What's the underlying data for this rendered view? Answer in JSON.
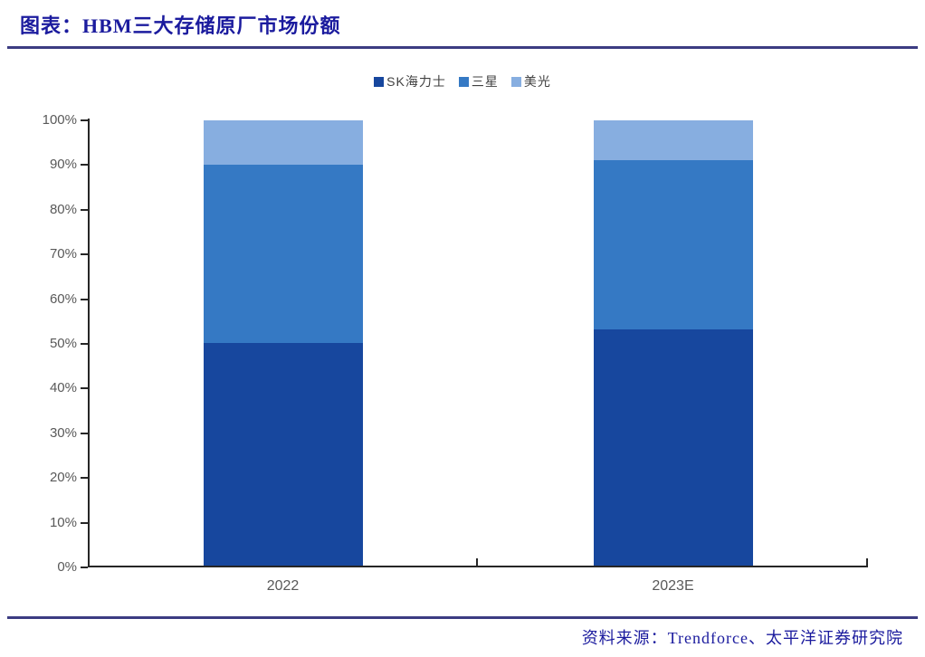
{
  "header": {
    "title": "图表：HBM三大存储原厂市场份额",
    "accent_color": "#1b1b9e",
    "divider_color": "#3c3c82"
  },
  "footer": {
    "source_text": "资料来源：Trendforce、太平洋证券研究院"
  },
  "chart_data": {
    "type": "bar",
    "stacked": true,
    "percent_stacked": true,
    "categories": [
      "2022",
      "2023E"
    ],
    "series": [
      {
        "name": "SK海力士",
        "color": "#17479e",
        "values": [
          50,
          53
        ]
      },
      {
        "name": "三星",
        "color": "#3579c4",
        "values": [
          40,
          38
        ]
      },
      {
        "name": "美光",
        "color": "#87aee0",
        "values": [
          10,
          9
        ]
      }
    ],
    "title": "HBM三大存储原厂市场份额",
    "xlabel": "",
    "ylabel": "",
    "ylim": [
      0,
      100
    ],
    "y_tick_step": 10,
    "y_tick_suffix": "%",
    "y_tick_labels": [
      "0%",
      "10%",
      "20%",
      "30%",
      "40%",
      "50%",
      "60%",
      "70%",
      "80%",
      "90%",
      "100%"
    ],
    "legend_position": "top",
    "grid": false,
    "axis_color": "#262626",
    "tick_label_color": "#595959"
  }
}
